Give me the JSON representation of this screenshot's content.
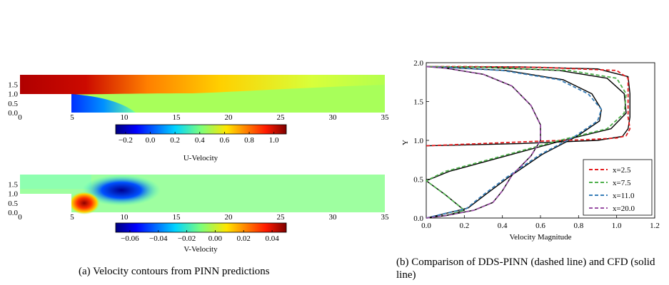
{
  "captions": {
    "a": "(a) Velocity contours from PINN predictions",
    "b": "(b) Comparison of DDS-PINN (dashed line) and CFD (solid line)"
  },
  "chart_data": [
    {
      "type": "heatmap",
      "colormap": "jet",
      "field": "U-Velocity",
      "x_ticks": [
        "0",
        "5",
        "10",
        "15",
        "20",
        "25",
        "30",
        "35"
      ],
      "y_ticks": [
        "0.0",
        "0.5",
        "1.0",
        "1.5"
      ],
      "colorbar_label": "U-Velocity",
      "colorbar_ticks": [
        "−0.2",
        "0.0",
        "0.2",
        "0.4",
        "0.6",
        "0.8",
        "1.0"
      ],
      "colorbar_range": [
        -0.28,
        1.1
      ]
    },
    {
      "type": "heatmap",
      "colormap": "jet",
      "field": "V-Velocity",
      "x_ticks": [
        "0",
        "5",
        "10",
        "15",
        "20",
        "25",
        "30",
        "35"
      ],
      "y_ticks": [
        "0.0",
        "0.5",
        "1.0",
        "1.5"
      ],
      "colorbar_label": "V-Velocity",
      "colorbar_ticks": [
        "−0.06",
        "−0.04",
        "−0.02",
        "0.00",
        "0.02",
        "0.04"
      ],
      "colorbar_range": [
        -0.07,
        0.05
      ]
    },
    {
      "type": "line",
      "xlabel": "Velocity Magnitude",
      "ylabel": "Y",
      "xlim": [
        0,
        1.2
      ],
      "ylim": [
        0,
        2.0
      ],
      "x_ticks": [
        "0.0",
        "0.2",
        "0.4",
        "0.6",
        "0.8",
        "1.0",
        "1.2"
      ],
      "y_ticks": [
        "0.0",
        "0.5",
        "1.0",
        "1.5",
        "2.0"
      ],
      "legend_position": "bottom-right",
      "series": [
        {
          "name": "x=2.5",
          "color": "#e41a1c",
          "points": [
            [
              0.0,
              0.93
            ],
            [
              0.05,
              0.935
            ],
            [
              0.3,
              0.96
            ],
            [
              0.6,
              0.99
            ],
            [
              0.85,
              1.01
            ],
            [
              1.0,
              1.03
            ],
            [
              1.05,
              1.06
            ],
            [
              1.07,
              1.15
            ],
            [
              1.06,
              1.3
            ],
            [
              1.06,
              1.6
            ],
            [
              1.06,
              1.8
            ],
            [
              1.0,
              1.9
            ],
            [
              0.6,
              1.94
            ],
            [
              0.2,
              1.95
            ],
            [
              0.0,
              1.95
            ]
          ],
          "cfd": [
            [
              0.0,
              0.93
            ],
            [
              0.1,
              0.935
            ],
            [
              0.5,
              0.96
            ],
            [
              0.9,
              1.0
            ],
            [
              1.03,
              1.05
            ],
            [
              1.06,
              1.15
            ],
            [
              1.07,
              1.3
            ],
            [
              1.07,
              1.6
            ],
            [
              1.06,
              1.82
            ],
            [
              0.9,
              1.92
            ],
            [
              0.5,
              1.945
            ],
            [
              0.0,
              1.95
            ]
          ]
        },
        {
          "name": "x=7.5",
          "color": "#4daf4a",
          "points": [
            [
              0.0,
              0.0
            ],
            [
              0.1,
              0.03
            ],
            [
              0.2,
              0.1
            ],
            [
              0.1,
              0.3
            ],
            [
              0.0,
              0.48
            ],
            [
              0.1,
              0.6
            ],
            [
              0.4,
              0.8
            ],
            [
              0.7,
              1.0
            ],
            [
              0.95,
              1.15
            ],
            [
              1.04,
              1.35
            ],
            [
              1.05,
              1.6
            ],
            [
              1.0,
              1.8
            ],
            [
              0.75,
              1.9
            ],
            [
              0.3,
              1.94
            ],
            [
              0.0,
              1.95
            ]
          ],
          "cfd": [
            [
              0.0,
              0.0
            ],
            [
              0.12,
              0.04
            ],
            [
              0.2,
              0.1
            ],
            [
              0.1,
              0.3
            ],
            [
              0.0,
              0.48
            ],
            [
              0.12,
              0.6
            ],
            [
              0.42,
              0.8
            ],
            [
              0.72,
              1.0
            ],
            [
              0.97,
              1.15
            ],
            [
              1.05,
              1.35
            ],
            [
              1.04,
              1.6
            ],
            [
              0.95,
              1.8
            ],
            [
              0.7,
              1.9
            ],
            [
              0.3,
              1.94
            ],
            [
              0.0,
              1.95
            ]
          ]
        },
        {
          "name": "x=11.0",
          "color": "#377eb8",
          "points": [
            [
              0.0,
              0.0
            ],
            [
              0.1,
              0.06
            ],
            [
              0.21,
              0.12
            ],
            [
              0.3,
              0.3
            ],
            [
              0.42,
              0.52
            ],
            [
              0.6,
              0.82
            ],
            [
              0.78,
              1.05
            ],
            [
              0.9,
              1.25
            ],
            [
              0.92,
              1.4
            ],
            [
              0.85,
              1.6
            ],
            [
              0.7,
              1.78
            ],
            [
              0.4,
              1.9
            ],
            [
              0.1,
              1.94
            ],
            [
              0.0,
              1.95
            ]
          ],
          "cfd": [
            [
              0.0,
              0.0
            ],
            [
              0.12,
              0.07
            ],
            [
              0.22,
              0.13
            ],
            [
              0.31,
              0.3
            ],
            [
              0.43,
              0.52
            ],
            [
              0.61,
              0.82
            ],
            [
              0.79,
              1.05
            ],
            [
              0.91,
              1.25
            ],
            [
              0.92,
              1.4
            ],
            [
              0.87,
              1.6
            ],
            [
              0.72,
              1.78
            ],
            [
              0.42,
              1.9
            ],
            [
              0.1,
              1.94
            ],
            [
              0.0,
              1.95
            ]
          ]
        },
        {
          "name": "x=20.0",
          "color": "#984ea3",
          "points": [
            [
              0.0,
              0.0
            ],
            [
              0.1,
              0.03
            ],
            [
              0.25,
              0.1
            ],
            [
              0.35,
              0.2
            ],
            [
              0.4,
              0.35
            ],
            [
              0.45,
              0.55
            ],
            [
              0.55,
              0.8
            ],
            [
              0.6,
              1.0
            ],
            [
              0.6,
              1.2
            ],
            [
              0.55,
              1.45
            ],
            [
              0.45,
              1.7
            ],
            [
              0.3,
              1.85
            ],
            [
              0.1,
              1.93
            ],
            [
              0.0,
              1.95
            ]
          ],
          "cfd": [
            [
              0.0,
              0.0
            ],
            [
              0.1,
              0.03
            ],
            [
              0.25,
              0.1
            ],
            [
              0.35,
              0.2
            ],
            [
              0.4,
              0.35
            ],
            [
              0.45,
              0.55
            ],
            [
              0.55,
              0.8
            ],
            [
              0.6,
              1.0
            ],
            [
              0.6,
              1.2
            ],
            [
              0.55,
              1.45
            ],
            [
              0.45,
              1.7
            ],
            [
              0.3,
              1.85
            ],
            [
              0.1,
              1.93
            ],
            [
              0.0,
              1.95
            ]
          ]
        }
      ]
    }
  ]
}
